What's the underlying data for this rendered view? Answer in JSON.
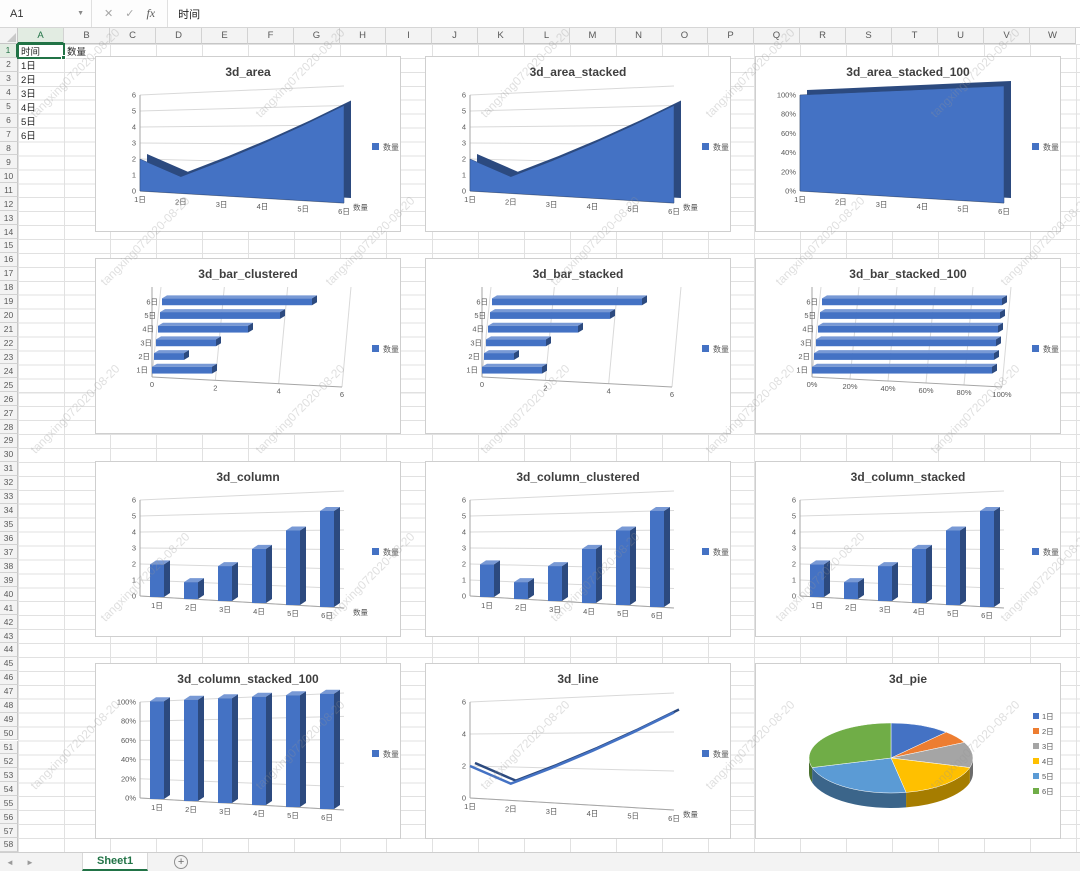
{
  "formula_bar": {
    "name_box": "A1",
    "cancel": "✕",
    "enter": "✓",
    "fx": "fx",
    "formula": "时间"
  },
  "sheet": {
    "columns": [
      "A",
      "B",
      "C",
      "D",
      "E",
      "F",
      "G",
      "H",
      "I",
      "J",
      "K",
      "L",
      "M",
      "N",
      "O",
      "P",
      "Q",
      "R",
      "S",
      "T",
      "U",
      "V",
      "W"
    ],
    "row_count": 58,
    "selected_cell": {
      "col": "A",
      "row": 1
    },
    "cells": [
      {
        "col": "A",
        "row": 1,
        "text": "时间"
      },
      {
        "col": "B",
        "row": 1,
        "text": "数量"
      },
      {
        "col": "A",
        "row": 2,
        "text": "1日"
      },
      {
        "col": "A",
        "row": 3,
        "text": "2日"
      },
      {
        "col": "A",
        "row": 4,
        "text": "3日"
      },
      {
        "col": "A",
        "row": 5,
        "text": "4日"
      },
      {
        "col": "A",
        "row": 6,
        "text": "5日"
      },
      {
        "col": "A",
        "row": 7,
        "text": "6日"
      }
    ]
  },
  "tab_bar": {
    "prev": "◄",
    "next": "►",
    "sheets": [
      {
        "label": "Sheet1",
        "active": true
      }
    ],
    "add": "+"
  },
  "watermark": {
    "text": "tangxing072020-08-20"
  },
  "chart_data": {
    "categories": [
      "1日",
      "2日",
      "3日",
      "4日",
      "5日",
      "6日"
    ],
    "series_name": "数量",
    "values": [
      2,
      1,
      2,
      3,
      4,
      5
    ],
    "value_max": 6,
    "palette": [
      "#4472C4",
      "#ED7D31",
      "#A5A5A5",
      "#FFC000",
      "#5B9BD5",
      "#70AD47"
    ],
    "charts": [
      {
        "title": "3d_area",
        "type": "area",
        "ticks": [
          "0",
          "1",
          "2",
          "3",
          "4",
          "5",
          "6"
        ],
        "depth_label": "数量"
      },
      {
        "title": "3d_area_stacked",
        "type": "area",
        "ticks": [
          "0",
          "1",
          "2",
          "3",
          "4",
          "5",
          "6"
        ],
        "depth_label": "数量"
      },
      {
        "title": "3d_area_stacked_100",
        "type": "area",
        "percent": true,
        "ticks": [
          "0%",
          "20%",
          "40%",
          "60%",
          "80%",
          "100%"
        ]
      },
      {
        "title": "3d_bar_clustered",
        "type": "bar",
        "ticks": [
          "0",
          "2",
          "4",
          "6"
        ]
      },
      {
        "title": "3d_bar_stacked",
        "type": "bar",
        "ticks": [
          "0",
          "2",
          "4",
          "6"
        ]
      },
      {
        "title": "3d_bar_stacked_100",
        "type": "bar",
        "percent": true,
        "ticks": [
          "0%",
          "20%",
          "40%",
          "60%",
          "80%",
          "100%"
        ]
      },
      {
        "title": "3d_column",
        "type": "column",
        "ticks": [
          "0",
          "1",
          "2",
          "3",
          "4",
          "5",
          "6"
        ],
        "depth_label": "数量"
      },
      {
        "title": "3d_column_clustered",
        "type": "column",
        "ticks": [
          "0",
          "1",
          "2",
          "3",
          "4",
          "5",
          "6"
        ]
      },
      {
        "title": "3d_column_stacked",
        "type": "column",
        "ticks": [
          "0",
          "1",
          "2",
          "3",
          "4",
          "5",
          "6"
        ]
      },
      {
        "title": "3d_column_stacked_100",
        "type": "column",
        "percent": true,
        "ticks": [
          "0%",
          "20%",
          "40%",
          "60%",
          "80%",
          "100%"
        ]
      },
      {
        "title": "3d_line",
        "type": "line",
        "ticks": [
          "0",
          "2",
          "4",
          "6"
        ],
        "depth_label": "数量"
      },
      {
        "title": "3d_pie",
        "type": "pie"
      }
    ]
  }
}
